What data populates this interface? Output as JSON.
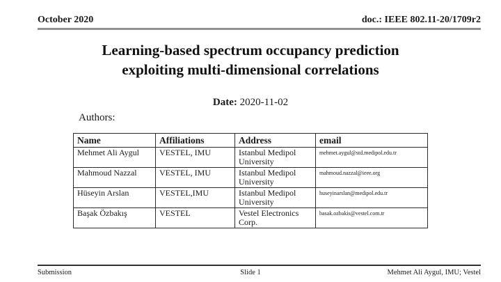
{
  "header": {
    "left": "October 2020",
    "right": "doc.: IEEE 802.11-20/1709r2"
  },
  "title": {
    "line1": "Learning-based spectrum occupancy prediction",
    "line2": "exploiting multi-dimensional correlations"
  },
  "date": {
    "label": "Date:",
    "value": "2020-11-02"
  },
  "authors_label": "Authors:",
  "table": {
    "columns": [
      "Name",
      "Affiliations",
      "Address",
      "email"
    ],
    "rows": [
      {
        "name": "Mehmet Ali Aygul",
        "affiliations": "VESTEL, IMU",
        "address": "Istanbul Medipol University",
        "email": "mehmet.aygul@std.medipol.edu.tr"
      },
      {
        "name": "Mahmoud Nazzal",
        "affiliations": "VESTEL, IMU",
        "address": "Istanbul Medipol University",
        "email": "mahmoud.nazzal@ieee.org"
      },
      {
        "name": "Hüseyin Arslan",
        "affiliations": "VESTEL,IMU",
        "address": "Istanbul Medipol University",
        "email": "huseyinarslan@medipol.edu.tr"
      },
      {
        "name": "Başak Özbakış",
        "affiliations": "VESTEL",
        "address": "Vestel Electronics Corp.",
        "email": "basak.ozbakis@vestel.com.tr"
      }
    ]
  },
  "footer": {
    "left": "Submission",
    "center": "Slide 1",
    "right": "Mehmet Ali Aygul, IMU; Vestel"
  },
  "colors": {
    "text": "#1a1a1a",
    "header_rule": "#909090",
    "footer_rule": "#303030",
    "table_border": "#2b2b2b",
    "background": "#ffffff"
  }
}
